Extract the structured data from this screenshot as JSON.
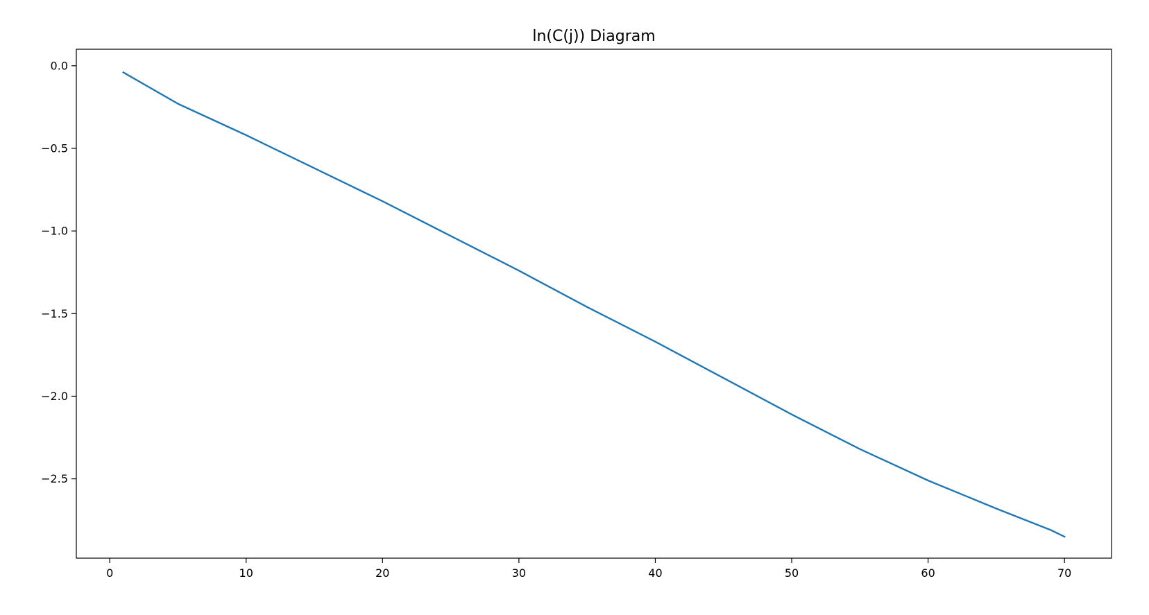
{
  "chart_data": {
    "type": "line",
    "title": "ln(C(j)) Diagram",
    "xlabel": "",
    "ylabel": "",
    "xlim": [
      -2.45,
      73.45
    ],
    "ylim": [
      -2.98,
      0.1
    ],
    "x_ticks": [
      0,
      10,
      20,
      30,
      40,
      50,
      60,
      70
    ],
    "x_tick_labels": [
      "0",
      "10",
      "20",
      "30",
      "40",
      "50",
      "60",
      "70"
    ],
    "y_ticks": [
      0.0,
      -0.5,
      -1.0,
      -1.5,
      -2.0,
      -2.5
    ],
    "y_tick_labels": [
      "0.0",
      "−0.5",
      "−1.0",
      "−1.5",
      "−2.0",
      "−2.5"
    ],
    "grid": false,
    "series": [
      {
        "color": "#1f77b4",
        "x": [
          1,
          5,
          10,
          15,
          20,
          25,
          30,
          35,
          40,
          45,
          50,
          55,
          60,
          65,
          69,
          70
        ],
        "y": [
          -0.04,
          -0.23,
          -0.42,
          -0.62,
          -0.82,
          -1.03,
          -1.24,
          -1.46,
          -1.67,
          -1.89,
          -2.11,
          -2.32,
          -2.51,
          -2.68,
          -2.81,
          -2.85
        ]
      }
    ]
  }
}
